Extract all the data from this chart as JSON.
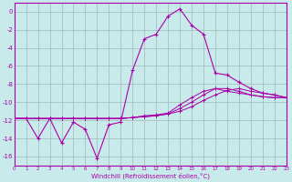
{
  "background_color": "#c8eaea",
  "grid_color": "#a0b8b8",
  "line_color": "#aa00aa",
  "xlim": [
    0,
    23
  ],
  "ylim": [
    -17,
    1
  ],
  "yticks": [
    0,
    -2,
    -4,
    -6,
    -8,
    -10,
    -12,
    -14,
    -16
  ],
  "xticks": [
    0,
    1,
    2,
    3,
    4,
    5,
    6,
    7,
    8,
    9,
    10,
    11,
    12,
    13,
    14,
    15,
    16,
    17,
    18,
    19,
    20,
    21,
    22,
    23
  ],
  "xlabel": "Windchill (Refroidissement éolien,°C)",
  "line1_x": [
    0,
    1,
    2,
    3,
    4,
    5,
    6,
    7,
    8,
    9,
    10,
    11,
    12,
    13,
    14,
    15,
    16,
    17,
    18,
    19,
    20,
    21,
    22,
    23
  ],
  "line1_y": [
    -11.8,
    -11.8,
    -14.0,
    -11.8,
    -14.5,
    -12.2,
    -13.0,
    -16.2,
    -12.5,
    -12.2,
    -6.5,
    -3.0,
    -2.5,
    -0.5,
    0.3,
    -1.5,
    -2.5,
    -6.8,
    -7.0,
    -7.8,
    -8.5,
    -9.0,
    -9.2,
    -9.5
  ],
  "line2_x": [
    0,
    1,
    2,
    3,
    4,
    5,
    6,
    7,
    8,
    9,
    10,
    11,
    12,
    13,
    14,
    15,
    16,
    17,
    18,
    19,
    20,
    21,
    22,
    23
  ],
  "line2_y": [
    -11.8,
    -11.8,
    -11.8,
    -11.8,
    -11.8,
    -11.8,
    -11.8,
    -11.8,
    -11.8,
    -11.8,
    -11.7,
    -11.6,
    -11.5,
    -11.3,
    -11.0,
    -10.5,
    -9.8,
    -9.2,
    -8.7,
    -8.5,
    -8.8,
    -9.0,
    -9.2,
    -9.5
  ],
  "line3_x": [
    0,
    1,
    2,
    3,
    4,
    5,
    6,
    7,
    8,
    9,
    10,
    11,
    12,
    13,
    14,
    15,
    16,
    17,
    18,
    19,
    20,
    21,
    22,
    23
  ],
  "line3_y": [
    -11.8,
    -11.8,
    -11.8,
    -11.8,
    -11.8,
    -11.8,
    -11.8,
    -11.8,
    -11.8,
    -11.8,
    -11.7,
    -11.6,
    -11.5,
    -11.3,
    -10.7,
    -10.0,
    -9.2,
    -8.5,
    -8.5,
    -8.8,
    -9.2,
    -9.4,
    -9.5,
    -9.5
  ],
  "line4_x": [
    0,
    1,
    2,
    3,
    4,
    5,
    6,
    7,
    8,
    9,
    10,
    11,
    12,
    13,
    14,
    15,
    16,
    17,
    18,
    19,
    20,
    21,
    22,
    23
  ],
  "line4_y": [
    -11.8,
    -11.8,
    -11.8,
    -11.8,
    -11.8,
    -11.8,
    -11.8,
    -11.8,
    -11.8,
    -11.8,
    -11.7,
    -11.5,
    -11.4,
    -11.2,
    -10.3,
    -9.5,
    -8.8,
    -8.5,
    -8.8,
    -9.0,
    -9.2,
    -9.4,
    -9.5,
    -9.5
  ]
}
